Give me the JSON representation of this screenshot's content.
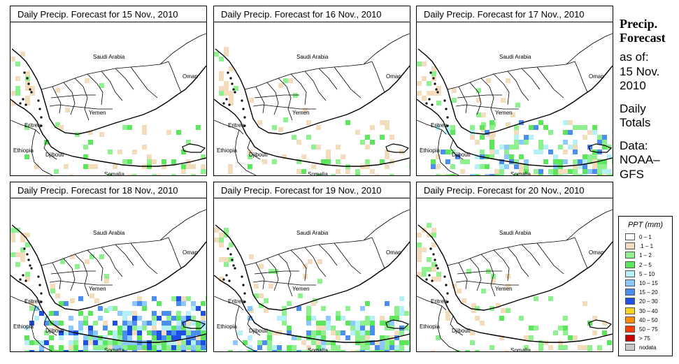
{
  "panels": [
    {
      "title": "Daily Precip. Forecast for  15 Nov., 2010",
      "intensity": "low"
    },
    {
      "title": "Daily Precip. Forecast for  16 Nov., 2010",
      "intensity": "low"
    },
    {
      "title": "Daily Precip. Forecast for  17 Nov., 2010",
      "intensity": "medium"
    },
    {
      "title": "Daily Precip. Forecast for  18 Nov., 2010",
      "intensity": "high"
    },
    {
      "title": "Daily Precip. Forecast for  19 Nov., 2010",
      "intensity": "medium"
    },
    {
      "title": "Daily Precip. Forecast for  20 Nov., 2010",
      "intensity": "low"
    }
  ],
  "map_labels": {
    "saudi": "Saudi Arabia",
    "oman": "Oman",
    "yemen": "Yemen",
    "eritrea": "Eritrea",
    "ethiopia": "Ethiopia",
    "djibouti": "Djibouti",
    "somalia": "Somalia"
  },
  "side": {
    "heading_1": "Precip.",
    "heading_2": "Forecast",
    "asof": "as of:",
    "date_1": "15 Nov.",
    "date_2": "2010",
    "totals_1": "Daily",
    "totals_2": "Totals",
    "data_1": "Data:",
    "data_2": "NOAA–",
    "data_3": "GFS"
  },
  "legend": {
    "title": "PPT (mm)",
    "items": [
      {
        "label": "0 – 1",
        "color": "#ffffff"
      },
      {
        "label": ".1 – 1",
        "color": "#f2dcbc"
      },
      {
        "label": "1 – 2",
        "color": "#8ef08e"
      },
      {
        "label": "2 – 5",
        "color": "#5ce65c"
      },
      {
        "label": "5 – 10",
        "color": "#b4f0f5"
      },
      {
        "label": "10 – 15",
        "color": "#8cc8ff"
      },
      {
        "label": "15 – 20",
        "color": "#4b8ef0"
      },
      {
        "label": "20 – 30",
        "color": "#1e50e6"
      },
      {
        "label": "30 – 40",
        "color": "#ffd21e"
      },
      {
        "label": "40 – 50",
        "color": "#ff8c00"
      },
      {
        "label": "50 – 75",
        "color": "#ff3c00"
      },
      {
        "label": "> 75",
        "color": "#c80000"
      },
      {
        "label": "nodata",
        "color": "#c8c8c8"
      }
    ]
  }
}
